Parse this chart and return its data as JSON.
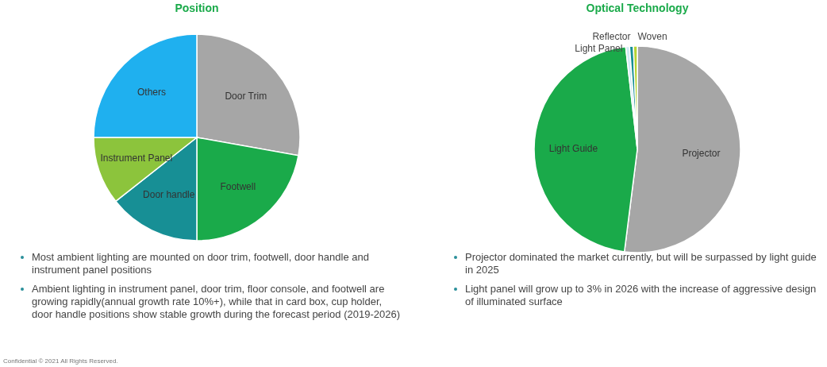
{
  "chart_data": [
    {
      "type": "pie",
      "title": "Position",
      "categories": [
        "Door Trim",
        "Footwell",
        "Door handle",
        "Instrument Panel",
        "Others"
      ],
      "values": [
        27.8,
        22.2,
        14.4,
        10.6,
        25
      ],
      "colors": [
        "#a6a6a6",
        "#1aaa4a",
        "#178f95",
        "#8cc43c",
        "#1fb0ef"
      ],
      "legend": false,
      "annotations": [
        "Most ambient lighting are mounted on door trim, footwell, door handle and instrument panel positions",
        "Ambient lighting in instrument panel, door trim, floor console, and footwell are growing rapidly(annual growth rate 10%+), while that in card box, cup holder, door handle positions show stable growth during the forecast period (2019-2026)",
        "Confidential © 2021 All Rights Reserved."
      ]
    },
    {
      "type": "pie",
      "title": "Optical Technology",
      "categories": [
        "Projector",
        "Light Guide",
        "Light Panel",
        "Reflector",
        "Woven"
      ],
      "values": [
        52,
        46.2,
        0.6,
        0.6,
        0.6
      ],
      "colors": [
        "#a6a6a6",
        "#1aaa4a",
        "#cfeaf5",
        "#178f95",
        "#b5d334"
      ],
      "legend": false,
      "annotations": [
        "Projector dominated the market currently, but will be surpassed by light guide in 2025",
        "Light panel will grow up to 3% in 2026 with the increase of aggressive design of illuminated surface"
      ]
    }
  ]
}
